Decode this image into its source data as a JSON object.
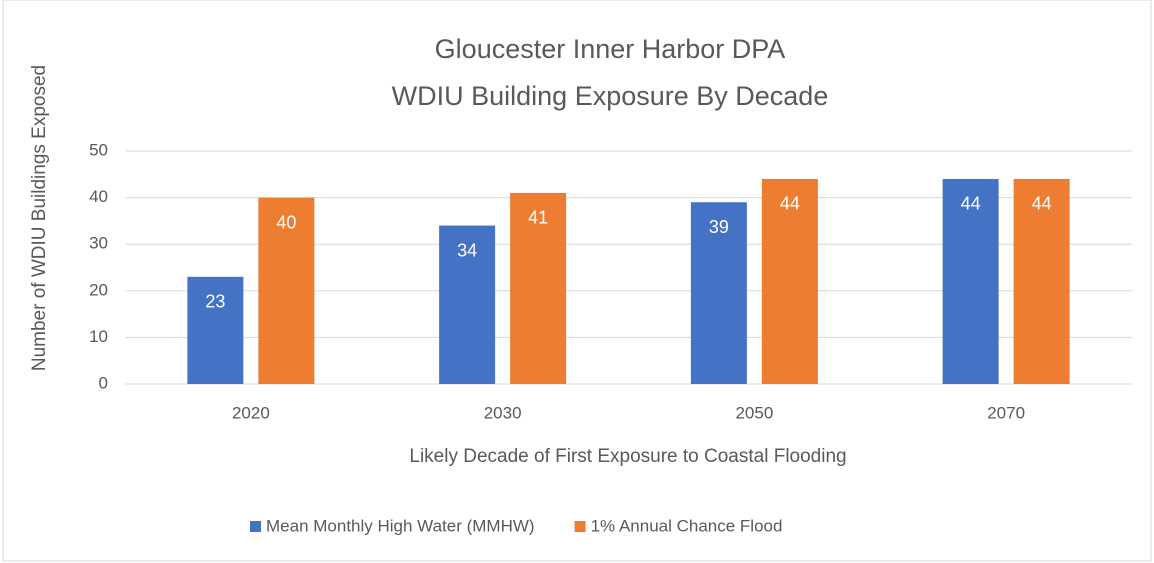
{
  "chart_data": {
    "type": "bar",
    "title": [
      "Gloucester Inner Harbor DPA",
      "WDIU Building Exposure By Decade"
    ],
    "y_label": "Number of WDIU Buildings Exposed",
    "x_label": "Likely Decade of First Exposure to Coastal Flooding",
    "categories": [
      "2020",
      "2030",
      "2050",
      "2070"
    ],
    "series": [
      {
        "name": "Mean Monthly High Water (MMHW)",
        "color": "#4472c4",
        "values": [
          23,
          34,
          39,
          44
        ]
      },
      {
        "name": "1% Annual Chance Flood",
        "color": "#ed7d31",
        "values": [
          40,
          41,
          44,
          44
        ]
      }
    ],
    "ylim": [
      0,
      50
    ],
    "yticks": [
      0,
      10,
      20,
      30,
      40,
      50
    ],
    "grid": true,
    "legend": "bottom"
  }
}
